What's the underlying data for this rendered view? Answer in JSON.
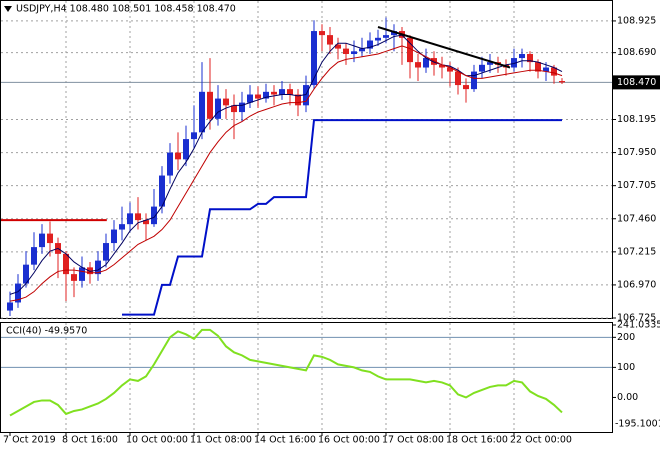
{
  "chart_data": {
    "type": "candlestick",
    "title": "USDJPY,H4  108.480 108.501 108.458 108.470",
    "categories": [
      "7 Oct 2019",
      null,
      null,
      null,
      null,
      null,
      null,
      "8 Oct 16:00",
      null,
      null,
      null,
      null,
      null,
      null,
      null,
      "10 Oct 00:00",
      null,
      null,
      null,
      null,
      null,
      null,
      null,
      "11 Oct 08:00",
      null,
      null,
      null,
      null,
      null,
      null,
      null,
      "14 Oct 16:00",
      null,
      null,
      null,
      null,
      null,
      null,
      null,
      "16 Oct 00:00",
      null,
      null,
      null,
      null,
      null,
      null,
      null,
      "17 Oct 08:00",
      null,
      null,
      null,
      null,
      null,
      null,
      null,
      "18 Oct 16:00",
      null,
      null,
      null,
      null,
      null,
      null,
      null,
      "22 Oct 00:00",
      null,
      null,
      null,
      null,
      null,
      null
    ],
    "open": [
      106.78,
      106.84,
      106.98,
      107.12,
      107.25,
      107.35,
      107.28,
      107.2,
      107.05,
      107.0,
      107.1,
      107.05,
      107.15,
      107.28,
      107.38,
      107.42,
      107.5,
      107.45,
      107.42,
      107.55,
      107.78,
      107.95,
      107.9,
      108.05,
      108.1,
      108.4,
      108.2,
      108.35,
      108.3,
      108.25,
      108.32,
      108.38,
      108.35,
      108.4,
      108.38,
      108.42,
      108.38,
      108.3,
      108.45,
      108.85,
      108.82,
      108.75,
      108.72,
      108.68,
      108.7,
      108.72,
      108.78,
      108.8,
      108.82,
      108.85,
      108.8,
      108.62,
      108.58,
      108.65,
      108.6,
      108.58,
      108.55,
      108.45,
      108.42,
      108.55,
      108.6,
      108.62,
      108.6,
      108.58,
      108.65,
      108.68,
      108.62,
      108.55,
      108.58,
      108.48
    ],
    "high": [
      106.92,
      107.05,
      107.22,
      107.36,
      107.42,
      107.44,
      107.32,
      107.22,
      107.1,
      107.18,
      107.14,
      107.22,
      107.35,
      107.45,
      107.55,
      107.58,
      107.62,
      107.5,
      107.68,
      107.85,
      108.02,
      108.1,
      108.15,
      108.3,
      108.62,
      108.65,
      108.45,
      108.42,
      108.38,
      108.4,
      108.45,
      108.44,
      108.46,
      108.45,
      108.48,
      108.46,
      108.42,
      108.52,
      108.93,
      108.9,
      108.88,
      108.8,
      108.76,
      108.78,
      108.8,
      108.84,
      108.86,
      108.95,
      108.9,
      108.88,
      108.82,
      108.68,
      108.72,
      108.7,
      108.66,
      108.62,
      108.58,
      108.5,
      108.6,
      108.66,
      108.68,
      108.66,
      108.64,
      108.72,
      108.72,
      108.7,
      108.64,
      108.62,
      108.6,
      108.501
    ],
    "low": [
      106.74,
      106.8,
      106.95,
      107.08,
      107.2,
      107.18,
      107.02,
      106.85,
      106.88,
      106.95,
      106.98,
      107.0,
      107.1,
      107.22,
      107.3,
      107.36,
      107.38,
      107.3,
      107.4,
      107.5,
      107.72,
      107.82,
      107.85,
      107.98,
      108.05,
      108.12,
      108.15,
      108.2,
      108.05,
      108.18,
      108.28,
      108.28,
      108.32,
      108.3,
      108.34,
      108.3,
      108.22,
      108.25,
      108.42,
      108.7,
      108.68,
      108.64,
      108.6,
      108.62,
      108.66,
      108.68,
      108.74,
      108.76,
      108.7,
      108.6,
      108.5,
      108.48,
      108.54,
      108.52,
      108.5,
      108.44,
      108.38,
      108.32,
      108.4,
      108.5,
      108.54,
      108.54,
      108.52,
      108.55,
      108.58,
      108.55,
      108.5,
      108.48,
      108.46,
      108.458
    ],
    "close": [
      106.84,
      106.98,
      107.12,
      107.25,
      107.35,
      107.28,
      107.2,
      107.05,
      107.0,
      107.1,
      107.05,
      107.15,
      107.28,
      107.38,
      107.42,
      107.5,
      107.45,
      107.42,
      107.55,
      107.78,
      107.95,
      107.9,
      108.05,
      108.1,
      108.4,
      108.2,
      108.35,
      108.3,
      108.25,
      108.32,
      108.38,
      108.35,
      108.4,
      108.38,
      108.42,
      108.38,
      108.3,
      108.45,
      108.85,
      108.82,
      108.75,
      108.72,
      108.68,
      108.7,
      108.72,
      108.78,
      108.8,
      108.82,
      108.85,
      108.8,
      108.62,
      108.58,
      108.65,
      108.6,
      108.58,
      108.55,
      108.45,
      108.42,
      108.55,
      108.6,
      108.62,
      108.6,
      108.58,
      108.65,
      108.68,
      108.62,
      108.55,
      108.58,
      108.52,
      108.47
    ],
    "up_color": "#1a2fd0",
    "down_color": "#e02020",
    "ylim": [
      106.725,
      109.08
    ],
    "yticks": [
      108.925,
      {
        "value": 108.69,
        "label": "108.690"
      },
      108.195,
      {
        "value": 107.95,
        "label": "107.950"
      },
      107.705,
      {
        "value": 107.46,
        "label": "107.460"
      },
      107.215,
      {
        "value": 106.97,
        "label": "106.970"
      },
      106.725
    ],
    "grid": true,
    "current_price": {
      "value": 108.47,
      "label": "108.470"
    },
    "overlays": [
      {
        "color": "#000060",
        "width": 1,
        "values": [
          106.9,
          106.92,
          106.98,
          107.06,
          107.15,
          107.22,
          107.24,
          107.2,
          107.14,
          107.1,
          107.07,
          107.08,
          107.12,
          107.2,
          107.28,
          107.37,
          107.43,
          107.45,
          107.47,
          107.55,
          107.68,
          107.8,
          107.88,
          107.98,
          108.1,
          108.18,
          108.25,
          108.28,
          108.3,
          108.3,
          108.32,
          108.34,
          108.36,
          108.37,
          108.38,
          108.38,
          108.37,
          108.38,
          108.5,
          108.62,
          108.7,
          108.76,
          108.76,
          108.74,
          108.72,
          108.73,
          108.75,
          108.78,
          108.81,
          108.82,
          108.76,
          108.7,
          108.65,
          108.62,
          108.6,
          108.59,
          108.56,
          108.52,
          108.52,
          108.54,
          108.56,
          108.58,
          108.6,
          108.61,
          108.63,
          108.63,
          108.62,
          108.6,
          108.58,
          108.55
        ]
      },
      {
        "color": "#c00000",
        "width": 1,
        "values": [
          106.85,
          106.86,
          106.88,
          106.92,
          106.98,
          107.03,
          107.07,
          107.08,
          107.08,
          107.07,
          107.06,
          107.06,
          107.08,
          107.12,
          107.17,
          107.22,
          107.27,
          107.3,
          107.33,
          107.38,
          107.45,
          107.55,
          107.65,
          107.75,
          107.85,
          107.95,
          108.03,
          108.1,
          108.15,
          108.18,
          108.22,
          108.25,
          108.27,
          108.29,
          108.31,
          108.32,
          108.32,
          108.33,
          108.42,
          108.5,
          108.57,
          108.62,
          108.64,
          108.65,
          108.66,
          108.67,
          108.68,
          108.7,
          108.72,
          108.74,
          108.72,
          108.69,
          108.66,
          108.63,
          108.6,
          108.58,
          108.55,
          108.52,
          108.5,
          108.5,
          108.51,
          108.52,
          108.53,
          108.54,
          108.55,
          108.56,
          108.56,
          108.55,
          108.54,
          108.52
        ]
      },
      {
        "color": "#0010c8",
        "width": 2,
        "values": [
          null,
          null,
          null,
          null,
          null,
          null,
          null,
          null,
          null,
          null,
          null,
          null,
          null,
          null,
          106.75,
          106.75,
          106.75,
          106.75,
          106.75,
          106.97,
          106.97,
          107.18,
          107.18,
          107.18,
          107.18,
          107.53,
          107.53,
          107.53,
          107.53,
          107.53,
          107.53,
          107.57,
          107.57,
          107.62,
          107.62,
          107.62,
          107.62,
          107.62,
          108.19,
          108.19,
          108.19,
          108.19,
          108.19,
          108.19,
          108.19,
          108.19,
          108.19,
          108.19,
          108.19,
          108.19,
          108.19,
          108.19,
          108.19,
          108.19,
          108.19,
          108.19,
          108.19,
          108.19,
          108.19,
          108.19,
          108.19,
          108.19,
          108.19,
          108.19,
          108.19,
          108.19,
          108.19,
          108.19,
          108.19,
          108.19
        ]
      }
    ],
    "trendline": {
      "color": "#000000",
      "x": [
        46,
        62.5
      ],
      "values": [
        108.88,
        108.58
      ]
    },
    "support_line": {
      "color": "#d00000",
      "x": [
        -1.2,
        12.1
      ],
      "values": [
        107.45,
        107.45
      ]
    },
    "indicator": {
      "type": "line",
      "title": "CCI(40) -49.9570",
      "color": "#80e020",
      "values": [
        -60,
        -45,
        -30,
        -15,
        -10,
        -10,
        -25,
        -55,
        -45,
        -40,
        -30,
        -20,
        -5,
        15,
        40,
        60,
        55,
        70,
        110,
        155,
        200,
        220,
        210,
        195,
        225,
        225,
        205,
        170,
        150,
        140,
        125,
        120,
        115,
        110,
        105,
        100,
        95,
        90,
        140,
        135,
        125,
        110,
        105,
        100,
        90,
        85,
        70,
        60,
        60,
        60,
        60,
        55,
        50,
        55,
        50,
        40,
        10,
        0,
        15,
        25,
        35,
        40,
        40,
        55,
        50,
        20,
        5,
        -5,
        -25,
        -49.957
      ],
      "ylim": [
        -115,
        241.0335
      ],
      "yticks": [
        {
          "value": 241.0335,
          "label": "241.0335"
        },
        200,
        100,
        {
          "value": 0,
          "label": "0.00"
        }
      ],
      "bottom_label": "-195.1001",
      "levels": [
        200,
        100
      ]
    }
  }
}
